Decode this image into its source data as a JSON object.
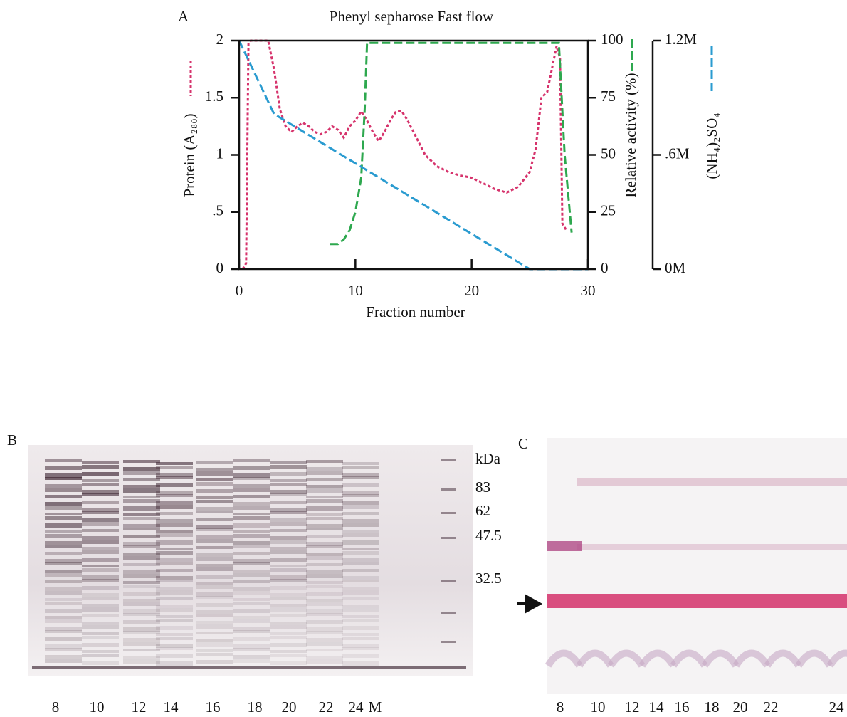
{
  "chart_data": {
    "type": "line",
    "title": "Phenyl sepharose Fast flow",
    "xlabel": "Fraction number",
    "ylabel": "Protein (A₂₈₀)",
    "y2label": "Relative activity (%)",
    "y3label": "(NH₄)₂SO₄",
    "xlim": [
      0,
      30
    ],
    "xticks": [
      0,
      10,
      20,
      30
    ],
    "ylim": [
      0,
      2
    ],
    "yticks": [
      0,
      {
        "value": 0.5,
        "label": ".5"
      },
      1,
      1.5,
      2
    ],
    "y2lim": [
      0,
      100
    ],
    "y2ticks": [
      0,
      25,
      50,
      75,
      100
    ],
    "y3lim": [
      0,
      1.2
    ],
    "y3ticks": [
      {
        "value": 0,
        "label": "0M"
      },
      {
        "value": 0.6,
        "label": ".6M"
      },
      {
        "value": 1.2,
        "label": "1.2M"
      }
    ],
    "series": [
      {
        "color": "#d6336c",
        "dash": "4 3",
        "axis": "y",
        "x": [
          0.3,
          0.6,
          0.8,
          1,
          2.5,
          3,
          3.5,
          4,
          4.5,
          5,
          5.5,
          6,
          6.5,
          7,
          7.5,
          8,
          8.5,
          9,
          9.5,
          10,
          10.5,
          11,
          11.5,
          12,
          12.5,
          13,
          13.5,
          14,
          14.5,
          15,
          16,
          17,
          18,
          19,
          20,
          21,
          22,
          23,
          24,
          25,
          25.5,
          26,
          26.5,
          27,
          27.3,
          27.6,
          27.8,
          28.2
        ],
        "values": [
          0,
          0.05,
          1.98,
          2,
          2,
          1.75,
          1.4,
          1.25,
          1.2,
          1.25,
          1.28,
          1.25,
          1.2,
          1.18,
          1.2,
          1.25,
          1.22,
          1.15,
          1.25,
          1.3,
          1.38,
          1.3,
          1.2,
          1.12,
          1.2,
          1.3,
          1.38,
          1.38,
          1.3,
          1.2,
          1.0,
          0.9,
          0.85,
          0.82,
          0.8,
          0.75,
          0.7,
          0.67,
          0.72,
          0.85,
          1.05,
          1.5,
          1.55,
          1.8,
          1.95,
          1.85,
          0.4,
          0.33
        ]
      },
      {
        "color": "#2ea84f",
        "dash": "12 5",
        "axis": "y2",
        "x": [
          7.8,
          8.5,
          9,
          9.5,
          10,
          10.5,
          10.8,
          11,
          27.5,
          28,
          28.6
        ],
        "values": [
          11,
          11,
          13,
          17,
          25,
          40,
          70,
          99,
          99,
          50,
          16
        ]
      },
      {
        "color": "#2a9bd0",
        "dash": "12 5",
        "axis": "y3",
        "x": [
          0,
          3,
          25,
          30
        ],
        "values": [
          1.2,
          0.815,
          0,
          0
        ]
      }
    ]
  },
  "panel_labels": [
    "A",
    "B",
    "C"
  ],
  "gel_b": {
    "lanes": [
      "8",
      "10",
      "12",
      "14",
      "16",
      "18",
      "20",
      "22",
      "24",
      "M"
    ],
    "markers": [
      "kDa",
      "83",
      "62",
      "47.5",
      "32.5"
    ]
  },
  "gel_c": {
    "lanes": [
      "8",
      "10",
      "12",
      "14",
      "16",
      "18",
      "20",
      "22",
      "24"
    ]
  }
}
